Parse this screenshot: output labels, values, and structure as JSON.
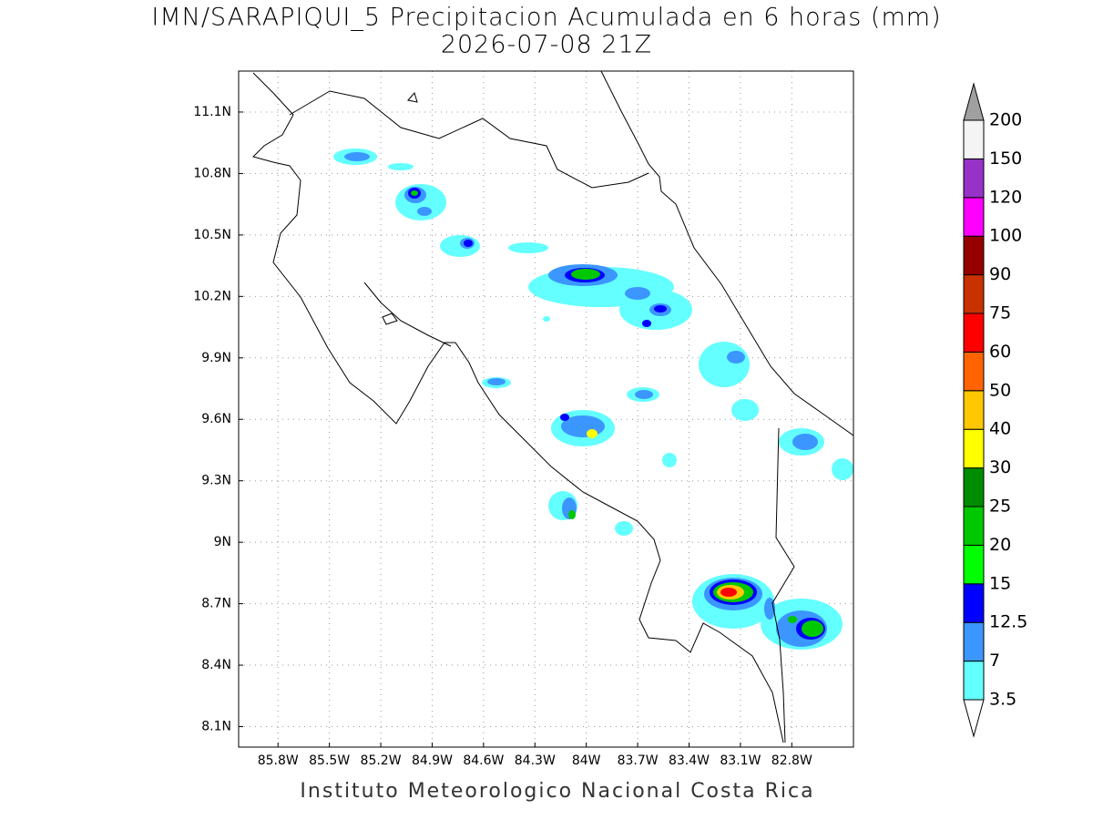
{
  "map": {
    "title": "IMN/SARAPIQUI_5 Precipitacion Acumulada en 6 horas (mm)",
    "subtitle": "2026-07-08 21Z",
    "footer": "Instituto Meteorologico Nacional Costa Rica",
    "lonlim": [
      -86.03,
      -82.44
    ],
    "latlim": [
      8.0,
      11.3
    ],
    "lonticks": [
      {
        "value": -85.8,
        "label": "85.8W"
      },
      {
        "value": -85.5,
        "label": "85.5W"
      },
      {
        "value": -85.2,
        "label": "85.2W"
      },
      {
        "value": -84.9,
        "label": "84.9W"
      },
      {
        "value": -84.6,
        "label": "84.6W"
      },
      {
        "value": -84.3,
        "label": "84.3W"
      },
      {
        "value": -84.0,
        "label": "84W"
      },
      {
        "value": -83.7,
        "label": "83.7W"
      },
      {
        "value": -83.4,
        "label": "83.4W"
      },
      {
        "value": -83.1,
        "label": "83.1W"
      },
      {
        "value": -82.8,
        "label": "82.8W"
      }
    ],
    "latticks": [
      {
        "value": 8.1,
        "label": "8.1N"
      },
      {
        "value": 8.4,
        "label": "8.4N"
      },
      {
        "value": 8.7,
        "label": "8.7N"
      },
      {
        "value": 9.0,
        "label": "9N"
      },
      {
        "value": 9.3,
        "label": "9.3N"
      },
      {
        "value": 9.6,
        "label": "9.6N"
      },
      {
        "value": 9.9,
        "label": "9.9N"
      },
      {
        "value": 10.2,
        "label": "10.2N"
      },
      {
        "value": 10.5,
        "label": "10.5N"
      },
      {
        "value": 10.8,
        "label": "10.8N"
      },
      {
        "value": 11.1,
        "label": "11.1N"
      }
    ],
    "grid": true,
    "colorbar": {
      "levels": [
        3.5,
        7,
        12.5,
        15,
        20,
        25,
        30,
        40,
        50,
        60,
        75,
        90,
        100,
        120,
        150,
        200
      ],
      "colors": [
        "#ffffff",
        "#64ffff",
        "#3c96ff",
        "#0000ff",
        "#00ff00",
        "#00c800",
        "#008c00",
        "#ffff00",
        "#ffc800",
        "#ff6400",
        "#ff0000",
        "#c83200",
        "#960000",
        "#ff00ff",
        "#9632c8",
        "#f4f4f4",
        "#a0a0a0"
      ]
    }
  }
}
